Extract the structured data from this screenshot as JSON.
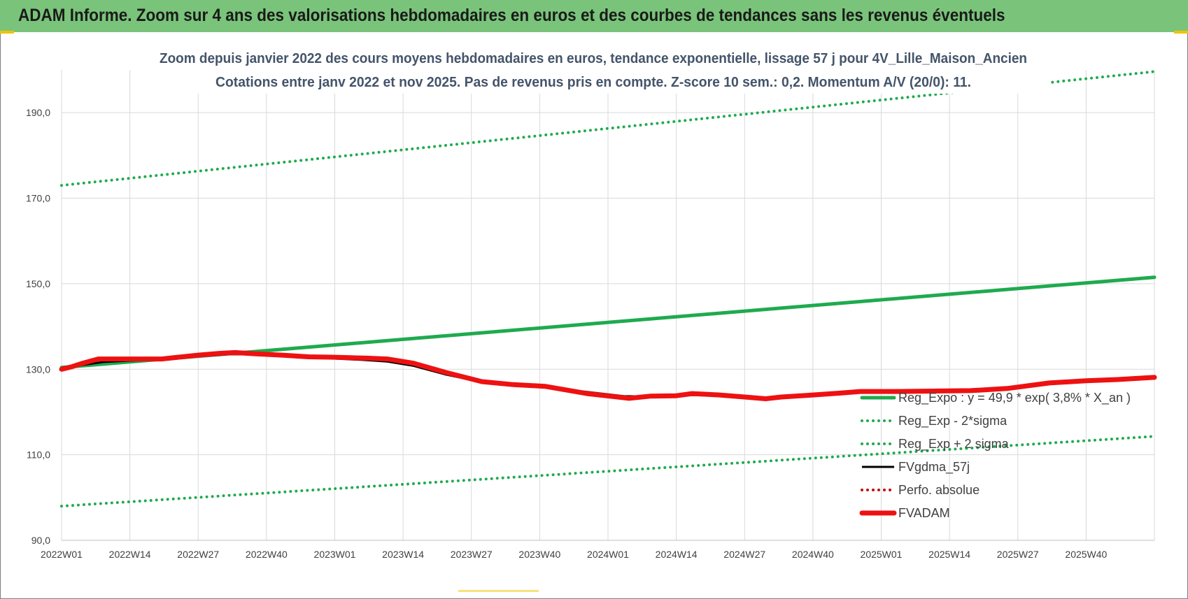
{
  "banner": {
    "title": "ADAM Informe. Zoom sur 4 ans des valorisations hebdomadaires en euros et des courbes de tendances sans les revenus éventuels"
  },
  "colors": {
    "banner": "#79c47a",
    "trend": "#1faa4f",
    "fvgdma": "#000000",
    "fvadam": "#ee1111",
    "perfo": "#cc0000",
    "grid": "#d9d9d9"
  },
  "chart_data": {
    "type": "line",
    "title": [
      "Zoom depuis janvier 2022 des cours moyens hebdomadaires en euros, tendance exponentielle, lissage 57 j pour 4V_Lille_Maison_Ancien",
      "Cotations entre janv 2022 et nov 2025. Pas de revenus pris en compte. Z-score 10 sem.: 0,2. Momentum A/V (20/0): 11."
    ],
    "x_tick_labels": [
      "2022W01",
      "2022W14",
      "2022W27",
      "2022W40",
      "2023W01",
      "2023W14",
      "2023W27",
      "2023W40",
      "2024W01",
      "2024W14",
      "2024W27",
      "2024W40",
      "2025W01",
      "2025W14",
      "2025W27",
      "2025W40"
    ],
    "y_tick_labels": [
      "90,0",
      "110,0",
      "130,0",
      "150,0",
      "170,0",
      "190,0"
    ],
    "ylim": [
      90,
      200
    ],
    "grid": true,
    "legend_position": "right",
    "series": [
      {
        "name": "Reg_Expo : y = 49,9 * exp( 3,8% *  X_an )",
        "style": "solid-thick",
        "color": "#1faa4f",
        "x": [
          0,
          208
        ],
        "y": [
          130.4,
          151.5
        ]
      },
      {
        "name": "Reg_Exp - 2*sigma",
        "style": "dotted",
        "color": "#1faa4f",
        "x": [
          0,
          208
        ],
        "y": [
          173.0,
          199.6
        ]
      },
      {
        "name": "Reg_Exp + 2 sigma",
        "style": "dotted",
        "color": "#1faa4f",
        "x": [
          0,
          208
        ],
        "y": [
          98.0,
          114.3
        ]
      },
      {
        "name": "FVgdma_57j",
        "style": "solid",
        "color": "#000000",
        "x": [
          0,
          4,
          8,
          13,
          19,
          26,
          32,
          37,
          44,
          52,
          57,
          62,
          67,
          73,
          80,
          86,
          92,
          100,
          107,
          112,
          117,
          123,
          130,
          136,
          142,
          148,
          152,
          159,
          166,
          173,
          180,
          188,
          195,
          201,
          208
        ],
        "y": [
          130.2,
          131.0,
          131.7,
          132.0,
          132.2,
          133.0,
          133.5,
          133.5,
          133.2,
          132.5,
          132.2,
          131.8,
          130.8,
          128.8,
          127.0,
          126.3,
          125.8,
          124.7,
          123.7,
          123.6,
          123.9,
          124.0,
          123.6,
          123.2,
          123.8,
          124.2,
          124.6,
          124.7,
          124.8,
          125.0,
          125.6,
          126.6,
          127.2,
          127.6,
          128.2
        ]
      },
      {
        "name": "Perfo. absolue",
        "style": "dotted",
        "color": "#cc0000",
        "x": [],
        "y": []
      },
      {
        "name": "FVADAM",
        "style": "solid-thick",
        "color": "#ee1111",
        "x": [
          0,
          2,
          4,
          7,
          9,
          13,
          19,
          26,
          30,
          33,
          37,
          42,
          47,
          52,
          58,
          62,
          67,
          73,
          80,
          86,
          92,
          100,
          103,
          108,
          112,
          117,
          120,
          125,
          130,
          134,
          137,
          142,
          148,
          152,
          159,
          166,
          173,
          180,
          188,
          195,
          201,
          208
        ],
        "y": [
          130.0,
          130.6,
          131.4,
          132.4,
          132.4,
          132.4,
          132.4,
          133.3,
          133.7,
          133.9,
          133.6,
          133.3,
          132.9,
          132.8,
          132.6,
          132.4,
          131.4,
          129.3,
          127.1,
          126.4,
          126.0,
          124.3,
          123.9,
          123.2,
          123.7,
          123.8,
          124.3,
          124.0,
          123.5,
          123.1,
          123.5,
          123.9,
          124.4,
          124.8,
          124.8,
          124.9,
          125.0,
          125.5,
          126.8,
          127.3,
          127.6,
          128.1
        ]
      }
    ]
  }
}
